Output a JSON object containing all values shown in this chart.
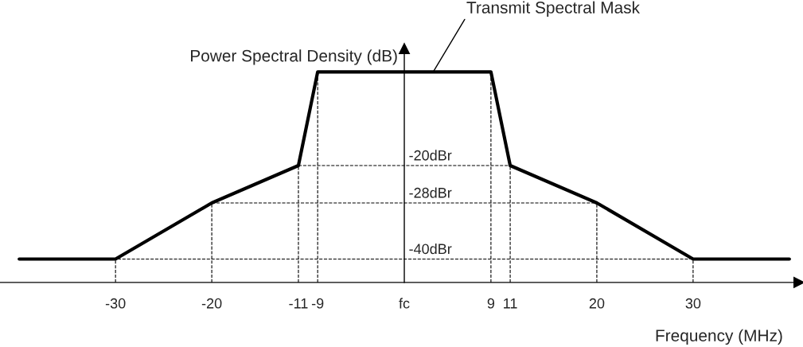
{
  "chart_data": {
    "type": "line",
    "x": [
      -40,
      -30,
      -20,
      -11,
      -9,
      9,
      11,
      20,
      30,
      40
    ],
    "series": [
      {
        "color": "#000000",
        "values": [
          -40,
          -40,
          -28,
          -20,
          0,
          0,
          -20,
          -28,
          -40,
          -40
        ]
      }
    ],
    "xlim": [
      -42,
      41
    ],
    "ylim": [
      -45,
      5
    ],
    "xticks": [
      -30,
      -20,
      -11,
      -9,
      {
        "value": 0,
        "label": "fc"
      },
      9,
      11,
      20,
      30
    ],
    "yticks": [
      {
        "value": -20,
        "label": "-20dBr"
      },
      {
        "value": -28,
        "label": "-28dBr"
      },
      {
        "value": -40,
        "label": "-40dBr"
      }
    ],
    "xlabel": "Frequency (MHz)",
    "ylabel": "Power Spectral Density (dB)",
    "annotations": [
      {
        "text": "Transmit Spectral Mask",
        "x": 3,
        "y": 0
      }
    ],
    "ref_lines": [
      {
        "axis": "y",
        "value": -20,
        "line_style": "dashed"
      },
      {
        "axis": "y",
        "value": -28,
        "line_style": "dashed"
      },
      {
        "axis": "y",
        "value": -40,
        "line_style": "dashed"
      },
      {
        "axis": "x",
        "value": -30,
        "line_style": "dashed"
      },
      {
        "axis": "x",
        "value": -20,
        "line_style": "dashed"
      },
      {
        "axis": "x",
        "value": -11,
        "line_style": "dashed"
      },
      {
        "axis": "x",
        "value": -9,
        "line_style": "dashed"
      },
      {
        "axis": "x",
        "value": 9,
        "line_style": "dashed"
      },
      {
        "axis": "x",
        "value": 11,
        "line_style": "dashed"
      },
      {
        "axis": "x",
        "value": 20,
        "line_style": "dashed"
      },
      {
        "axis": "x",
        "value": 30,
        "line_style": "dashed"
      }
    ],
    "marker": "none",
    "line_style": "solid",
    "grid": false,
    "legend": false
  }
}
